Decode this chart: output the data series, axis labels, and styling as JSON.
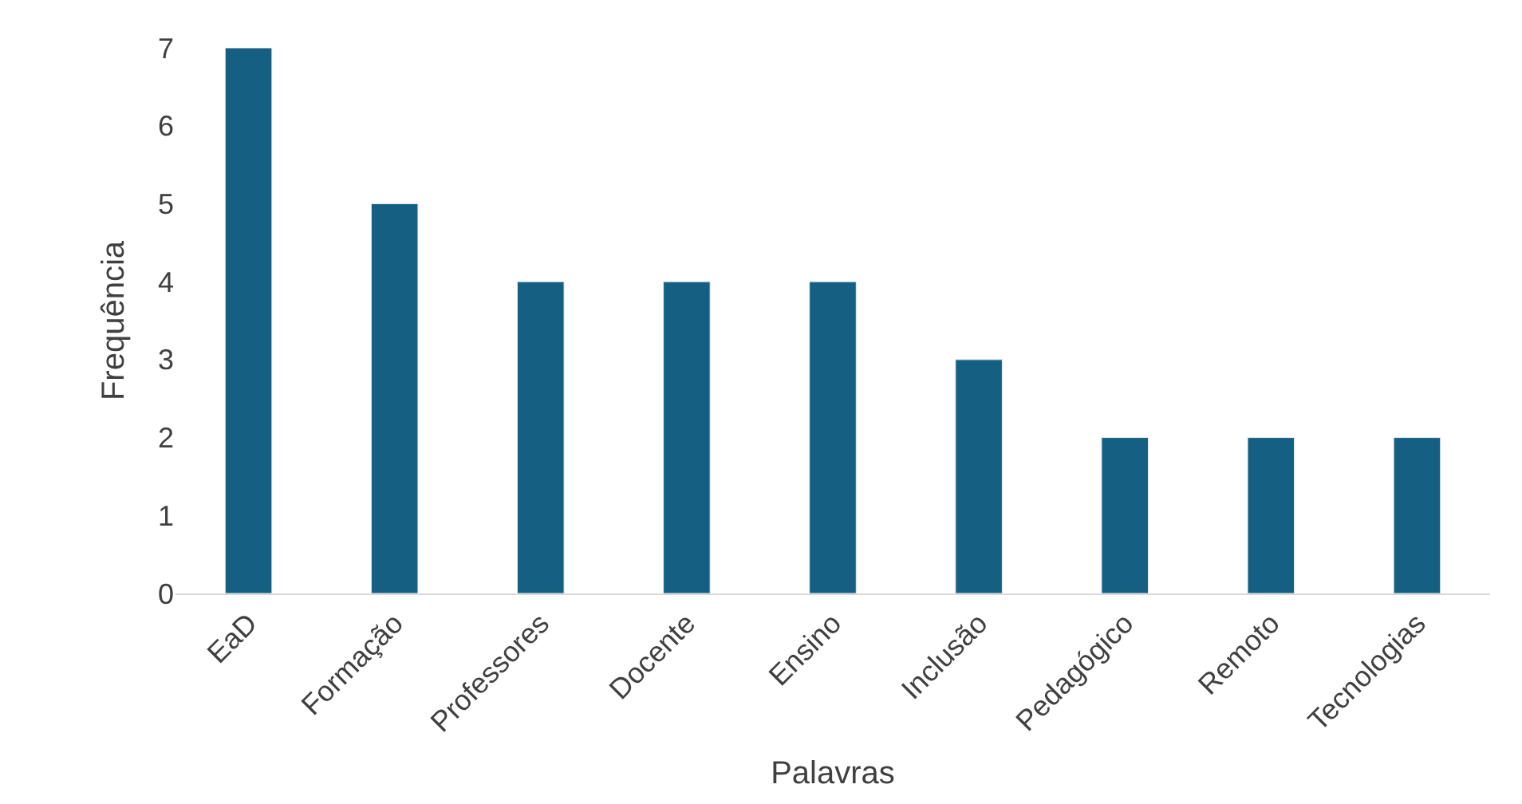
{
  "chart_data": {
    "type": "bar",
    "xlabel": "Palavras",
    "ylabel": "Frequência",
    "categories": [
      "EaD",
      "Formação",
      "Professores",
      "Docente",
      "Ensino",
      "Inclusão",
      "Pedagógico",
      "Remoto",
      "Tecnologias"
    ],
    "values": [
      7,
      5,
      4,
      4,
      4,
      3,
      2,
      2,
      2
    ],
    "color": "#156082",
    "ylim": [
      0,
      7
    ],
    "yticks": [
      0,
      1,
      2,
      3,
      4,
      5,
      6,
      7
    ]
  }
}
